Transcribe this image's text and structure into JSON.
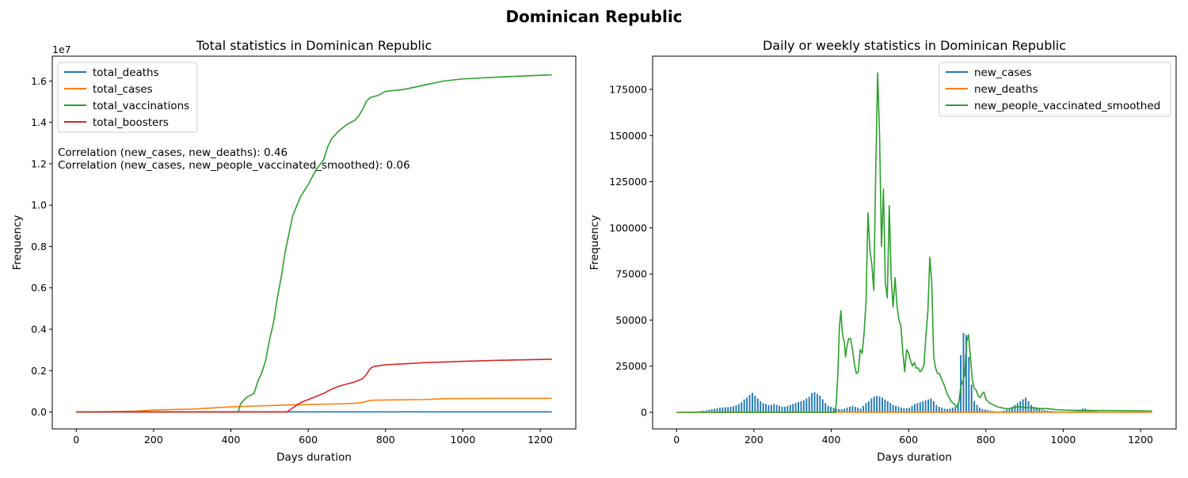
{
  "figure": {
    "suptitle": "Dominican Republic"
  },
  "colors": {
    "blue": "#1f77b4",
    "orange": "#ff7f0e",
    "green": "#2ca02c",
    "red": "#d62728"
  },
  "chart_data": [
    {
      "type": "line",
      "title": "Total statistics in Dominican Republic",
      "xlabel": "Days duration",
      "ylabel": "Frequency",
      "y_offset_label": "1e7",
      "xlim": [
        -62,
        1292
      ],
      "ylim": [
        -820000,
        17200000
      ],
      "xticks": [
        0,
        200,
        400,
        600,
        800,
        1000,
        1200
      ],
      "xtick_labels": [
        "0",
        "200",
        "400",
        "600",
        "800",
        "1000",
        "1200"
      ],
      "yticks": [
        0,
        2000000,
        4000000,
        6000000,
        8000000,
        10000000,
        12000000,
        14000000,
        16000000
      ],
      "ytick_labels": [
        "0.0",
        "0.2",
        "0.4",
        "0.6",
        "0.8",
        "1.0",
        "1.2",
        "1.4",
        "1.6"
      ],
      "legend_position": "upper-left",
      "annotations": [
        "Correlation (new_cases, new_deaths): 0.46",
        "Correlation (new_cases, new_people_vaccinated_smoothed): 0.06"
      ],
      "series": [
        {
          "name": "total_deaths",
          "color": "#1f77b4",
          "x": [
            0,
            100,
            200,
            400,
            600,
            800,
            1000,
            1230
          ],
          "y": [
            0,
            1000,
            2000,
            3500,
            4000,
            4400,
            4400,
            4400
          ]
        },
        {
          "name": "total_cases",
          "color": "#ff7f0e",
          "x": [
            0,
            50,
            100,
            150,
            200,
            250,
            300,
            350,
            400,
            450,
            500,
            550,
            600,
            650,
            700,
            720,
            740,
            760,
            770,
            800,
            850,
            900,
            950,
            1000,
            1100,
            1230
          ],
          "y": [
            0,
            10000,
            20000,
            40000,
            90000,
            120000,
            140000,
            190000,
            250000,
            280000,
            310000,
            340000,
            360000,
            380000,
            400000,
            420000,
            460000,
            560000,
            570000,
            580000,
            590000,
            600000,
            640000,
            650000,
            660000,
            660000
          ]
        },
        {
          "name": "total_vaccinations",
          "color": "#2ca02c",
          "x": [
            0,
            419,
            425,
            440,
            460,
            470,
            480,
            490,
            500,
            510,
            520,
            530,
            540,
            550,
            560,
            580,
            600,
            620,
            640,
            650,
            660,
            680,
            700,
            720,
            730,
            740,
            750,
            760,
            780,
            800,
            850,
            900,
            950,
            1000,
            1100,
            1230
          ],
          "y": [
            0,
            0,
            400000,
            700000,
            900000,
            1500000,
            1900000,
            2500000,
            3500000,
            4300000,
            5500000,
            6500000,
            7700000,
            8600000,
            9500000,
            10400000,
            11000000,
            11700000,
            12200000,
            12800000,
            13200000,
            13600000,
            13900000,
            14100000,
            14300000,
            14600000,
            15000000,
            15200000,
            15300000,
            15500000,
            15600000,
            15800000,
            16000000,
            16100000,
            16200000,
            16300000
          ]
        },
        {
          "name": "total_boosters",
          "color": "#d62728",
          "x": [
            0,
            545,
            560,
            580,
            600,
            620,
            640,
            660,
            680,
            700,
            720,
            740,
            750,
            760,
            770,
            800,
            850,
            900,
            1000,
            1100,
            1230
          ],
          "y": [
            0,
            0,
            200000,
            450000,
            600000,
            750000,
            900000,
            1100000,
            1250000,
            1350000,
            1450000,
            1600000,
            1800000,
            2100000,
            2200000,
            2280000,
            2330000,
            2380000,
            2450000,
            2500000,
            2550000
          ]
        }
      ]
    },
    {
      "type": "bar+line",
      "title": "Daily or weekly statistics in Dominican Republic",
      "xlabel": "Days duration",
      "ylabel": "Frequency",
      "xlim": [
        -62,
        1292
      ],
      "ylim": [
        -9000,
        193000
      ],
      "xticks": [
        0,
        200,
        400,
        600,
        800,
        1000,
        1200
      ],
      "xtick_labels": [
        "0",
        "200",
        "400",
        "600",
        "800",
        "1000",
        "1200"
      ],
      "yticks": [
        0,
        25000,
        50000,
        75000,
        100000,
        125000,
        150000,
        175000
      ],
      "ytick_labels": [
        "0",
        "25000",
        "50000",
        "75000",
        "100000",
        "125000",
        "150000",
        "175000"
      ],
      "legend_position": "upper-right",
      "series": [
        {
          "name": "new_cases",
          "color": "#1f77b4",
          "kind": "bar",
          "x": [
            0,
            7,
            14,
            21,
            28,
            35,
            42,
            49,
            56,
            63,
            70,
            77,
            84,
            91,
            98,
            105,
            112,
            119,
            126,
            133,
            140,
            147,
            154,
            161,
            168,
            175,
            182,
            189,
            196,
            203,
            210,
            217,
            224,
            231,
            238,
            245,
            252,
            259,
            266,
            273,
            280,
            287,
            294,
            301,
            308,
            315,
            322,
            329,
            336,
            343,
            350,
            357,
            364,
            371,
            378,
            385,
            392,
            399,
            406,
            413,
            420,
            427,
            434,
            441,
            448,
            455,
            462,
            469,
            476,
            483,
            490,
            497,
            504,
            511,
            518,
            525,
            532,
            539,
            546,
            553,
            560,
            567,
            574,
            581,
            588,
            595,
            602,
            609,
            616,
            623,
            630,
            637,
            644,
            651,
            658,
            665,
            672,
            679,
            686,
            693,
            700,
            707,
            714,
            721,
            728,
            735,
            742,
            749,
            756,
            763,
            770,
            777,
            784,
            791,
            798,
            805,
            812,
            819,
            826,
            833,
            840,
            847,
            854,
            861,
            868,
            875,
            882,
            889,
            896,
            903,
            910,
            917,
            924,
            931,
            938,
            945,
            952,
            959,
            966,
            973,
            980,
            987,
            994,
            1001,
            1008,
            1015,
            1022,
            1029,
            1036,
            1043,
            1050,
            1057,
            1064,
            1071,
            1078,
            1085,
            1092,
            1099,
            1106,
            1113,
            1120,
            1127,
            1134,
            1141,
            1148,
            1155,
            1162,
            1169,
            1176,
            1183,
            1190,
            1197,
            1204,
            1211,
            1218,
            1225
          ],
          "y": [
            0,
            10,
            30,
            60,
            100,
            150,
            250,
            350,
            500,
            700,
            900,
            1100,
            1400,
            1700,
            2000,
            2300,
            2500,
            2600,
            2700,
            2800,
            3000,
            3300,
            3800,
            4500,
            5500,
            7000,
            8000,
            9500,
            10500,
            9000,
            7500,
            6000,
            5000,
            4500,
            4000,
            4000,
            4500,
            4000,
            3500,
            3000,
            3000,
            3500,
            4000,
            4500,
            5000,
            5500,
            6000,
            6500,
            7500,
            8500,
            10500,
            11000,
            10000,
            9000,
            7000,
            5000,
            3500,
            3000,
            2500,
            2000,
            1800,
            1700,
            2000,
            2500,
            3000,
            3500,
            3000,
            2500,
            2000,
            3500,
            5000,
            6000,
            7500,
            8500,
            8800,
            8500,
            8000,
            7000,
            6000,
            5000,
            4000,
            3500,
            3000,
            2500,
            2200,
            2200,
            2500,
            3500,
            4500,
            5000,
            5500,
            6000,
            6500,
            7000,
            7500,
            6000,
            4000,
            3000,
            2500,
            2000,
            1800,
            2000,
            2500,
            3000,
            5000,
            31000,
            43000,
            42000,
            30000,
            15000,
            6000,
            4000,
            2500,
            1800,
            1500,
            1200,
            900,
            700,
            500,
            400,
            600,
            1000,
            1500,
            2000,
            3000,
            4000,
            5000,
            6000,
            7000,
            8000,
            6000,
            4000,
            3000,
            2500,
            2000,
            1500,
            1200,
            1000,
            800,
            700,
            600,
            500,
            500,
            400,
            400,
            400,
            500,
            700,
            1000,
            1500,
            2000,
            2200,
            1500,
            1000,
            700,
            500,
            400,
            300,
            300,
            300,
            300,
            300,
            300,
            300,
            300,
            300,
            300,
            300,
            300,
            300,
            300,
            300,
            300,
            300,
            300,
            300
          ]
        },
        {
          "name": "new_deaths",
          "color": "#ff7f0e",
          "kind": "line",
          "x": [
            0,
            200,
            400,
            600,
            800,
            1000,
            1230
          ],
          "y": [
            0,
            50,
            60,
            40,
            30,
            5,
            5
          ]
        },
        {
          "name": "new_people_vaccinated_smoothed",
          "color": "#2ca02c",
          "kind": "line",
          "x": [
            0,
            410,
            413,
            417,
            421,
            425,
            428,
            431,
            434,
            437,
            440,
            445,
            450,
            455,
            460,
            465,
            470,
            475,
            480,
            485,
            490,
            495,
            500,
            505,
            510,
            515,
            520,
            525,
            530,
            535,
            540,
            545,
            550,
            555,
            560,
            565,
            570,
            575,
            580,
            585,
            590,
            595,
            600,
            605,
            610,
            615,
            620,
            625,
            630,
            635,
            640,
            645,
            650,
            655,
            660,
            665,
            670,
            675,
            680,
            685,
            690,
            695,
            700,
            705,
            710,
            715,
            720,
            725,
            730,
            735,
            740,
            745,
            750,
            755,
            760,
            765,
            770,
            775,
            780,
            785,
            790,
            795,
            800,
            810,
            820,
            830,
            840,
            850,
            860,
            870,
            880,
            890,
            900,
            920,
            940,
            960,
            980,
            1000,
            1050,
            1100,
            1150,
            1200,
            1230
          ],
          "y": [
            0,
            0,
            5000,
            20000,
            46000,
            55000,
            45000,
            40000,
            38000,
            30000,
            35000,
            40000,
            40000,
            34000,
            26000,
            21000,
            22000,
            34000,
            32000,
            43000,
            60000,
            108000,
            88000,
            80000,
            66000,
            130000,
            184000,
            150000,
            90000,
            121000,
            70000,
            62000,
            112000,
            73000,
            57000,
            73000,
            58000,
            50000,
            47000,
            33000,
            22000,
            34000,
            32000,
            28000,
            25000,
            27000,
            24000,
            24000,
            22000,
            23000,
            26000,
            42000,
            55000,
            84000,
            70000,
            30000,
            24000,
            21000,
            21000,
            18000,
            16000,
            13000,
            10000,
            8000,
            6000,
            5000,
            4000,
            3000,
            5000,
            14000,
            17000,
            20000,
            38000,
            42000,
            30000,
            17000,
            13000,
            12000,
            9000,
            8000,
            10000,
            11000,
            7000,
            5000,
            4000,
            3000,
            2500,
            2000,
            2000,
            2500,
            3000,
            3000,
            2500,
            2500,
            2000,
            2000,
            1500,
            1200,
            1000,
            1000,
            900,
            800,
            700
          ]
        }
      ]
    }
  ]
}
